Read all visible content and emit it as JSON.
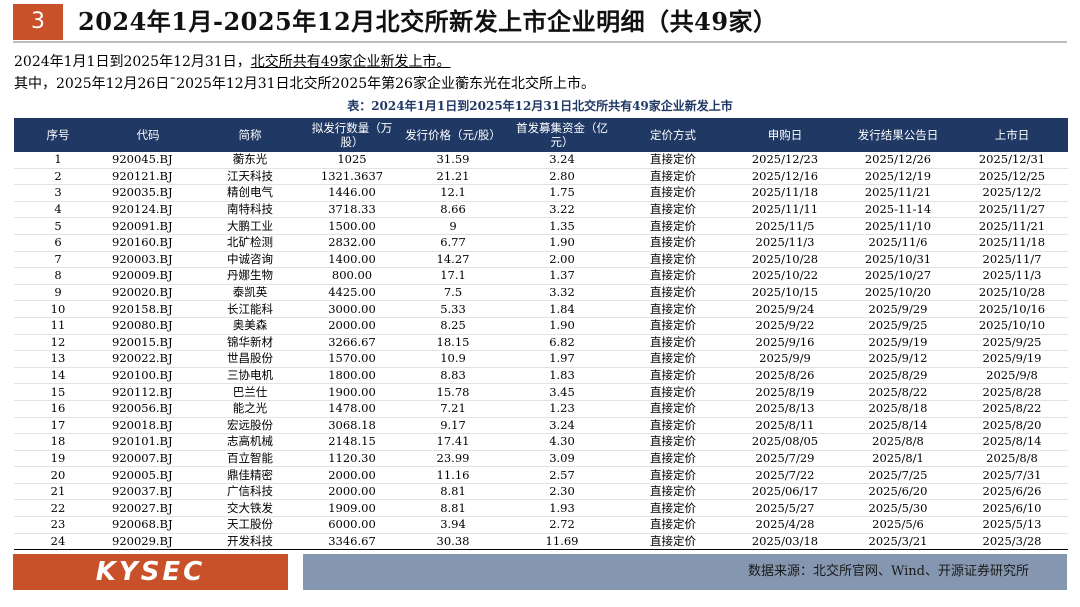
{
  "header": {
    "number": "3",
    "title": "2024年1月-2025年12月北交所新发上市企业明细（共49家）"
  },
  "intro": {
    "line1_prefix": "2024年1月1日到2025年12月31日，",
    "line1_underlined": "北交所共有49家企业新发上市。",
    "line2": "其中，2025年12月26日¯2025年12月31日北交所2025年第26家企业蘅东光在北交所上市。"
  },
  "caption": "表：2024年1月1日到2025年12月31日北交所共有49家企业新发上市",
  "table": {
    "headers": [
      "序号",
      "代码",
      "简称",
      "拟发行数量（万股）",
      "发行价格（元/股）",
      "首发募集资金（亿元）",
      "定价方式",
      "申购日",
      "发行结果公告日",
      "上市日"
    ],
    "rows": [
      [
        "1",
        "920045.BJ",
        "蘅东光",
        "1025",
        "31.59",
        "3.24",
        "直接定价",
        "2025/12/23",
        "2025/12/26",
        "2025/12/31"
      ],
      [
        "2",
        "920121.BJ",
        "江天科技",
        "1321.3637",
        "21.21",
        "2.80",
        "直接定价",
        "2025/12/16",
        "2025/12/19",
        "2025/12/25"
      ],
      [
        "3",
        "920035.BJ",
        "精创电气",
        "1446.00",
        "12.1",
        "1.75",
        "直接定价",
        "2025/11/18",
        "2025/11/21",
        "2025/12/2"
      ],
      [
        "4",
        "920124.BJ",
        "南特科技",
        "3718.33",
        "8.66",
        "3.22",
        "直接定价",
        "2025/11/11",
        "2025-11-14",
        "2025/11/27"
      ],
      [
        "5",
        "920091.BJ",
        "大鹏工业",
        "1500.00",
        "9",
        "1.35",
        "直接定价",
        "2025/11/5",
        "2025/11/10",
        "2025/11/21"
      ],
      [
        "6",
        "920160.BJ",
        "北矿检测",
        "2832.00",
        "6.77",
        "1.90",
        "直接定价",
        "2025/11/3",
        "2025/11/6",
        "2025/11/18"
      ],
      [
        "7",
        "920003.BJ",
        "中诚咨询",
        "1400.00",
        "14.27",
        "2.00",
        "直接定价",
        "2025/10/28",
        "2025/10/31",
        "2025/11/7"
      ],
      [
        "8",
        "920009.BJ",
        "丹娜生物",
        "800.00",
        "17.1",
        "1.37",
        "直接定价",
        "2025/10/22",
        "2025/10/27",
        "2025/11/3"
      ],
      [
        "9",
        "920020.BJ",
        "泰凯英",
        "4425.00",
        "7.5",
        "3.32",
        "直接定价",
        "2025/10/15",
        "2025/10/20",
        "2025/10/28"
      ],
      [
        "10",
        "920158.BJ",
        "长江能科",
        "3000.00",
        "5.33",
        "1.84",
        "直接定价",
        "2025/9/24",
        "2025/9/29",
        "2025/10/16"
      ],
      [
        "11",
        "920080.BJ",
        "奥美森",
        "2000.00",
        "8.25",
        "1.90",
        "直接定价",
        "2025/9/22",
        "2025/9/25",
        "2025/10/10"
      ],
      [
        "12",
        "920015.BJ",
        "锦华新材",
        "3266.67",
        "18.15",
        "6.82",
        "直接定价",
        "2025/9/16",
        "2025/9/19",
        "2025/9/25"
      ],
      [
        "13",
        "920022.BJ",
        "世昌股份",
        "1570.00",
        "10.9",
        "1.97",
        "直接定价",
        "2025/9/9",
        "2025/9/12",
        "2025/9/19"
      ],
      [
        "14",
        "920100.BJ",
        "三协电机",
        "1800.00",
        "8.83",
        "1.83",
        "直接定价",
        "2025/8/26",
        "2025/8/29",
        "2025/9/8"
      ],
      [
        "15",
        "920112.BJ",
        "巴兰仕",
        "1900.00",
        "15.78",
        "3.45",
        "直接定价",
        "2025/8/19",
        "2025/8/22",
        "2025/8/28"
      ],
      [
        "16",
        "920056.BJ",
        "能之光",
        "1478.00",
        "7.21",
        "1.23",
        "直接定价",
        "2025/8/13",
        "2025/8/18",
        "2025/8/22"
      ],
      [
        "17",
        "920018.BJ",
        "宏远股份",
        "3068.18",
        "9.17",
        "3.24",
        "直接定价",
        "2025/8/11",
        "2025/8/14",
        "2025/8/20"
      ],
      [
        "18",
        "920101.BJ",
        "志高机械",
        "2148.15",
        "17.41",
        "4.30",
        "直接定价",
        "2025/08/05",
        "2025/8/8",
        "2025/8/14"
      ],
      [
        "19",
        "920007.BJ",
        "百立智能",
        "1120.30",
        "23.99",
        "3.09",
        "直接定价",
        "2025/7/29",
        "2025/8/1",
        "2025/8/8"
      ],
      [
        "20",
        "920005.BJ",
        "鼎佳精密",
        "2000.00",
        "11.16",
        "2.57",
        "直接定价",
        "2025/7/22",
        "2025/7/25",
        "2025/7/31"
      ],
      [
        "21",
        "920037.BJ",
        "广信科技",
        "2000.00",
        "8.81",
        "2.30",
        "直接定价",
        "2025/06/17",
        "2025/6/20",
        "2025/6/26"
      ],
      [
        "22",
        "920027.BJ",
        "交大铁发",
        "1909.00",
        "8.81",
        "1.93",
        "直接定价",
        "2025/5/27",
        "2025/5/30",
        "2025/6/10"
      ],
      [
        "23",
        "920068.BJ",
        "天工股份",
        "6000.00",
        "3.94",
        "2.72",
        "直接定价",
        "2025/4/28",
        "2025/5/6",
        "2025/5/13"
      ],
      [
        "24",
        "920029.BJ",
        "开发科技",
        "3346.67",
        "30.38",
        "11.69",
        "直接定价",
        "2025/03/18",
        "2025/3/21",
        "2025/3/28"
      ]
    ]
  },
  "footer": {
    "logo_text": "KYSEC",
    "source": "数据来源：北交所官网、Wind、开源证券研究所"
  },
  "colors": {
    "accent_orange": "#c8512a",
    "header_navy": "#1f3864",
    "footer_gray_blue": "#8496b0"
  }
}
